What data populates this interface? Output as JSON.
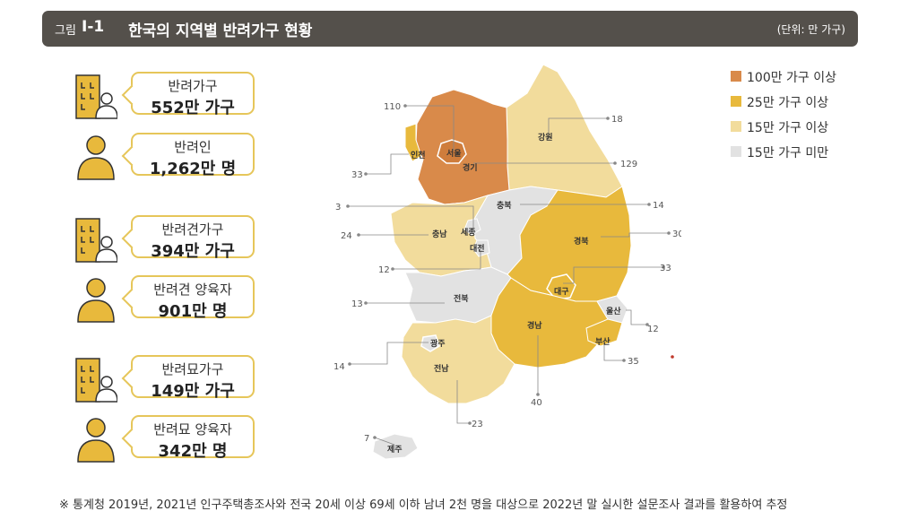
{
  "figure": {
    "label": "그림",
    "number": "Ⅰ-1",
    "title": "한국의 지역별  반려가구 현황",
    "unit": "(단위: 만 가구)"
  },
  "stats": [
    {
      "label": "반려가구",
      "value": "552만 가구",
      "icon": "household-icon"
    },
    {
      "label": "반려인",
      "value": "1,262만 명",
      "icon": "person-icon"
    },
    {
      "label": "반려견가구",
      "value": "394만 가구",
      "icon": "household-icon"
    },
    {
      "label": "반려견 양육자",
      "value": "901만 명",
      "icon": "person-icon"
    },
    {
      "label": "반려묘가구",
      "value": "149만 가구",
      "icon": "household-icon"
    },
    {
      "label": "반려묘 양육자",
      "value": "342만 명",
      "icon": "person-icon"
    }
  ],
  "legend": [
    {
      "label": "100만 가구 이상",
      "color": "#d98a4a"
    },
    {
      "label": "25만 가구 이상",
      "color": "#e8b93c"
    },
    {
      "label": "15만 가구 이상",
      "color": "#f2dc9c"
    },
    {
      "label": "15만 가구 미만",
      "color": "#e2e2e2"
    }
  ],
  "regions": [
    {
      "name": "서울",
      "value": "110"
    },
    {
      "name": "인천",
      "value": "33"
    },
    {
      "name": "경기",
      "value": "129"
    },
    {
      "name": "강원",
      "value": "18"
    },
    {
      "name": "충북",
      "value": "14"
    },
    {
      "name": "세종",
      "value": "3"
    },
    {
      "name": "충남",
      "value": "24"
    },
    {
      "name": "대전",
      "value": "12"
    },
    {
      "name": "경북",
      "value": "30"
    },
    {
      "name": "대구",
      "value": "33"
    },
    {
      "name": "전북",
      "value": "13"
    },
    {
      "name": "울산",
      "value": "12"
    },
    {
      "name": "경남",
      "value": "40"
    },
    {
      "name": "부산",
      "value": "35"
    },
    {
      "name": "광주",
      "value": "14"
    },
    {
      "name": "전남",
      "value": "23"
    },
    {
      "name": "제주",
      "value": "7"
    }
  ],
  "footnote": "※ 통계청 2019년, 2021년 인구주택총조사와 전국 20세 이상 69세 이하 남녀 2천 명을 대상으로 2022년 말 실시한 설문조사 결과를 활용하여 추정"
}
